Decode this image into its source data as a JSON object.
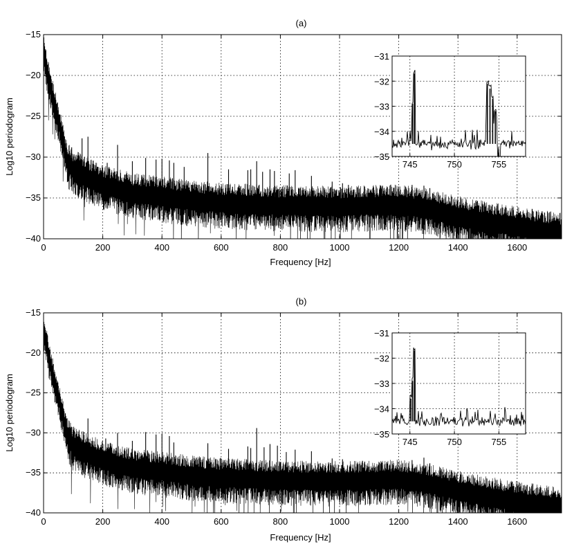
{
  "chart_data": [
    {
      "type": "line",
      "title": "(a)",
      "xlabel": "Frequency [Hz]",
      "ylabel": "Log10 periodogram",
      "xlim": [
        0,
        1750
      ],
      "ylim": [
        -40,
        -15
      ],
      "xticks": [
        0,
        200,
        400,
        600,
        800,
        1000,
        1200,
        1400,
        1600
      ],
      "yticks": [
        -15,
        -20,
        -25,
        -30,
        -35,
        -40
      ],
      "grid": true,
      "baseline": {
        "x": [
          0,
          20,
          40,
          60,
          80,
          100,
          150,
          200,
          300,
          400,
          500,
          600,
          800,
          1000,
          1200,
          1300,
          1400,
          1500,
          1600,
          1750
        ],
        "y": [
          -17,
          -21,
          -24,
          -27,
          -30.5,
          -31.5,
          -32.5,
          -33.4,
          -34.4,
          -34.8,
          -35.3,
          -35.6,
          -35.9,
          -36,
          -35.8,
          -36.3,
          -37.2,
          -37.9,
          -38.5,
          -39.3
        ]
      },
      "peaks": [
        {
          "x": 95,
          "y": -28.8
        },
        {
          "x": 130,
          "y": -27.7
        },
        {
          "x": 150,
          "y": -27.5
        },
        {
          "x": 215,
          "y": -30.7
        },
        {
          "x": 250,
          "y": -28.5
        },
        {
          "x": 300,
          "y": -30.5
        },
        {
          "x": 345,
          "y": -30.1
        },
        {
          "x": 380,
          "y": -30.3
        },
        {
          "x": 400,
          "y": -30.2
        },
        {
          "x": 425,
          "y": -30.4
        },
        {
          "x": 440,
          "y": -30.7
        },
        {
          "x": 475,
          "y": -31.2
        },
        {
          "x": 555,
          "y": -29.5
        },
        {
          "x": 625,
          "y": -31.5
        },
        {
          "x": 690,
          "y": -31.6
        },
        {
          "x": 700,
          "y": -31.5
        },
        {
          "x": 720,
          "y": -30.5
        },
        {
          "x": 740,
          "y": -31.8
        },
        {
          "x": 765,
          "y": -31.5
        },
        {
          "x": 780,
          "y": -31.7
        },
        {
          "x": 830,
          "y": -32
        },
        {
          "x": 850,
          "y": -31.6
        },
        {
          "x": 905,
          "y": -32.3
        },
        {
          "x": 975,
          "y": -33
        },
        {
          "x": 1010,
          "y": -33.2
        },
        {
          "x": 1030,
          "y": -33.4
        },
        {
          "x": 1085,
          "y": -33.6
        },
        {
          "x": 1145,
          "y": -33.5
        },
        {
          "x": 1200,
          "y": -33.6
        },
        {
          "x": 1245,
          "y": -33.4
        },
        {
          "x": 1285,
          "y": -33.5
        },
        {
          "x": 1305,
          "y": -33.8
        }
      ],
      "inset": {
        "xlim": [
          743,
          758
        ],
        "ylim": [
          -35,
          -31
        ],
        "xticks": [
          745,
          750,
          755
        ],
        "yticks": [
          -31,
          -32,
          -33,
          -34,
          -35
        ],
        "baseline": -34.5,
        "peaks": [
          {
            "x": 745.5,
            "y": -31.7
          },
          {
            "x": 745.3,
            "y": -32.9
          },
          {
            "x": 753.7,
            "y": -32.1
          },
          {
            "x": 754.0,
            "y": -32.3
          },
          {
            "x": 754.3,
            "y": -32.7
          },
          {
            "x": 754.6,
            "y": -33.2
          }
        ]
      }
    },
    {
      "type": "line",
      "title": "(b)",
      "xlabel": "Frequency [Hz]",
      "ylabel": "Log10 periodogram",
      "xlim": [
        0,
        1750
      ],
      "ylim": [
        -40,
        -15
      ],
      "xticks": [
        0,
        200,
        400,
        600,
        800,
        1000,
        1200,
        1400,
        1600
      ],
      "yticks": [
        -15,
        -20,
        -25,
        -30,
        -35,
        -40
      ],
      "grid": true,
      "baseline": {
        "x": [
          0,
          20,
          40,
          60,
          80,
          100,
          150,
          200,
          300,
          400,
          500,
          600,
          800,
          1000,
          1200,
          1300,
          1400,
          1500,
          1600,
          1750
        ],
        "y": [
          -17,
          -21,
          -24,
          -27,
          -30.5,
          -31.5,
          -32.5,
          -33.4,
          -34.4,
          -34.8,
          -35.3,
          -35.6,
          -35.9,
          -36,
          -35.8,
          -36.3,
          -37.2,
          -37.9,
          -38.5,
          -39.3
        ]
      },
      "peaks": [
        {
          "x": 100,
          "y": -29.6
        },
        {
          "x": 150,
          "y": -28.2
        },
        {
          "x": 210,
          "y": -30.7
        },
        {
          "x": 250,
          "y": -30
        },
        {
          "x": 300,
          "y": -31
        },
        {
          "x": 345,
          "y": -29.9
        },
        {
          "x": 380,
          "y": -30.2
        },
        {
          "x": 400,
          "y": -30.1
        },
        {
          "x": 425,
          "y": -30.4
        },
        {
          "x": 440,
          "y": -31.2
        },
        {
          "x": 555,
          "y": -31.3
        },
        {
          "x": 625,
          "y": -32
        },
        {
          "x": 690,
          "y": -31.7
        },
        {
          "x": 700,
          "y": -31.9
        },
        {
          "x": 720,
          "y": -29.4
        },
        {
          "x": 745,
          "y": -31.8
        },
        {
          "x": 765,
          "y": -31.4
        },
        {
          "x": 790,
          "y": -31.6
        },
        {
          "x": 820,
          "y": -32.4
        },
        {
          "x": 850,
          "y": -32.1
        },
        {
          "x": 905,
          "y": -32.3
        },
        {
          "x": 975,
          "y": -33.2
        },
        {
          "x": 1010,
          "y": -33.3
        },
        {
          "x": 1085,
          "y": -33.6
        },
        {
          "x": 1145,
          "y": -33.7
        },
        {
          "x": 1245,
          "y": -33.4
        },
        {
          "x": 1285,
          "y": -33.1
        },
        {
          "x": 1305,
          "y": -33.8
        }
      ],
      "inset": {
        "xlim": [
          743,
          758
        ],
        "ylim": [
          -35,
          -31
        ],
        "xticks": [
          745,
          750,
          755
        ],
        "yticks": [
          -31,
          -32,
          -33,
          -34,
          -35
        ],
        "baseline": -34.5,
        "peaks": [
          {
            "x": 745.5,
            "y": -31.7
          },
          {
            "x": 745.3,
            "y": -32.9
          },
          {
            "x": 745.1,
            "y": -33.6
          }
        ]
      }
    }
  ]
}
